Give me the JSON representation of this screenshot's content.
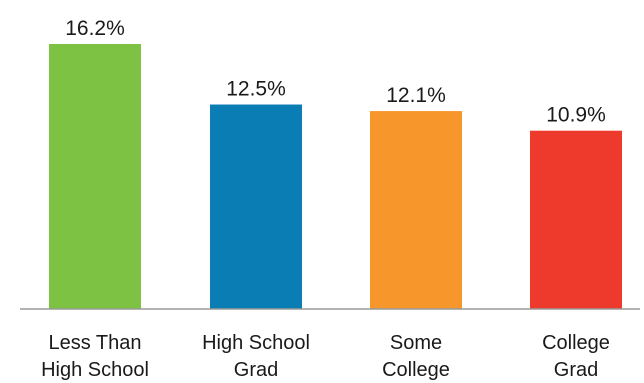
{
  "chart_data": {
    "type": "bar",
    "categories": [
      [
        "Less Than",
        "High School"
      ],
      [
        "High School",
        "Grad"
      ],
      [
        "Some",
        "College"
      ],
      [
        "College",
        "Grad"
      ]
    ],
    "values": [
      16.2,
      12.5,
      12.1,
      10.9
    ],
    "value_labels": [
      "16.2%",
      "12.5%",
      "12.1%",
      "10.9%"
    ],
    "colors": [
      "#7DC242",
      "#0A7DB5",
      "#F7962A",
      "#EE3A2C"
    ],
    "ylim": [
      0,
      16.2
    ],
    "grid": false,
    "legend": "none",
    "title": "",
    "xlabel": "",
    "ylabel": ""
  }
}
